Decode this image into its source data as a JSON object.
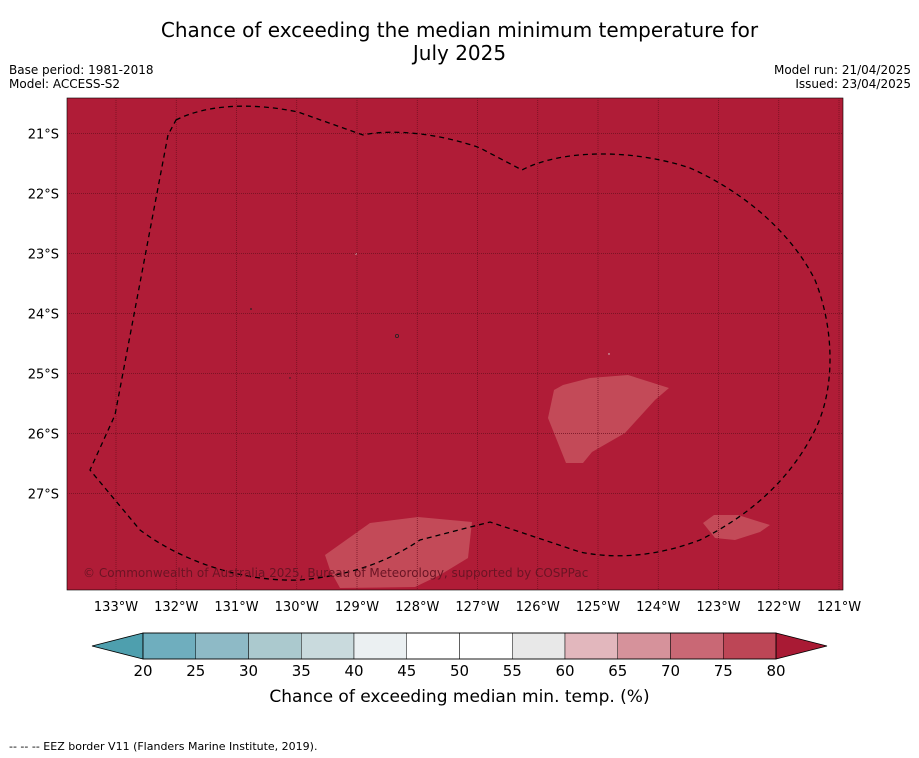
{
  "header": {
    "title_line1": "Chance of exceeding the median minimum temperature for",
    "title_line2": "July 2025",
    "base_period": "Base period: 1981-2018",
    "model": "Model: ACCESS-S2",
    "model_run": "Model run: 21/04/2025",
    "issued": "Issued: 23/04/2025"
  },
  "map": {
    "background_color": "#b01c37",
    "lat_labels": [
      "21°S",
      "22°S",
      "23°S",
      "24°S",
      "25°S",
      "26°S",
      "27°S"
    ],
    "lon_labels": [
      "133°W",
      "132°W",
      "131°W",
      "130°W",
      "129°W",
      "128°W",
      "127°W",
      "126°W",
      "125°W",
      "124°W",
      "123°W",
      "122°W",
      "121°W"
    ],
    "copyright": "© Commonwealth of Australia 2025, Bureau of Meteorology, supported by COSPPac"
  },
  "colorbar": {
    "ticks": [
      "20",
      "25",
      "30",
      "35",
      "40",
      "45",
      "50",
      "55",
      "60",
      "65",
      "70",
      "75",
      "80"
    ],
    "colors": [
      "#6faebe",
      "#8ebac6",
      "#abc9ce",
      "#c9dadd",
      "#ebf0f2",
      "#ffffff",
      "#ffffff",
      "#e8e8e8",
      "#e2b7bd",
      "#d6929b",
      "#c96875",
      "#bd4656"
    ],
    "under_color": "#4e9fae",
    "over_color": "#a91a34",
    "label": "Chance of exceeding median min. temp. (%)"
  },
  "footnote": "--  --  -- EEZ border V11 (Flanders Marine Institute, 2019)."
}
